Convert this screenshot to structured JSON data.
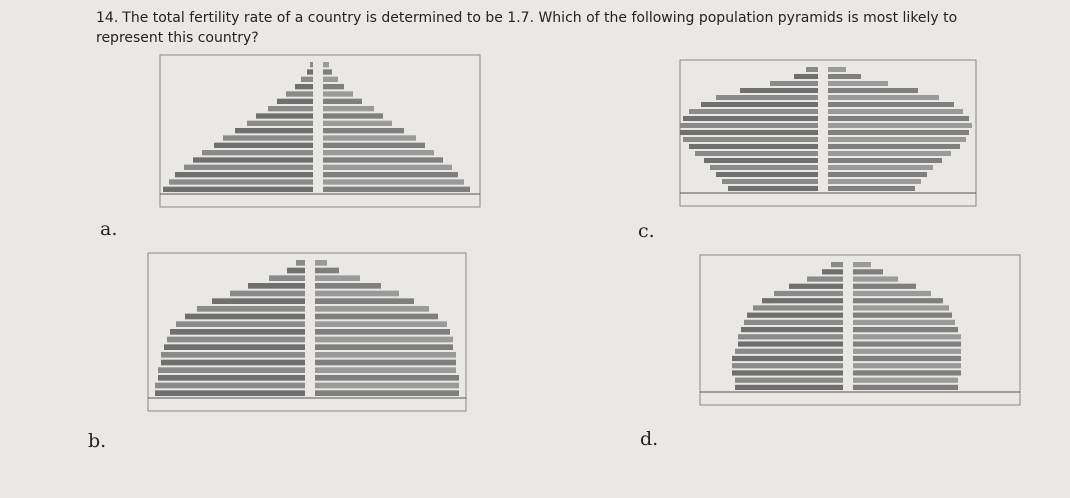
{
  "question": {
    "number": "14.",
    "text": "The total fertility rate of a country is determined to be 1.7. Which of the following population pyramids is most likely to represent this country?"
  },
  "options": [
    {
      "label": "a.",
      "pyramid": {
        "type": "population-pyramid",
        "male": [
          5.0,
          4.8,
          4.6,
          4.3,
          4.0,
          3.7,
          3.3,
          3.0,
          2.6,
          2.2,
          1.9,
          1.5,
          1.2,
          0.9,
          0.6,
          0.4,
          0.2,
          0.1
        ],
        "female": [
          4.9,
          4.7,
          4.5,
          4.3,
          4.0,
          3.7,
          3.4,
          3.1,
          2.7,
          2.3,
          2.0,
          1.7,
          1.3,
          1.0,
          0.7,
          0.5,
          0.3,
          0.2
        ]
      }
    },
    {
      "label": "b.",
      "pyramid": {
        "type": "population-pyramid",
        "male": [
          5.0,
          5.0,
          4.9,
          4.9,
          4.8,
          4.8,
          4.7,
          4.6,
          4.5,
          4.3,
          4.0,
          3.6,
          3.1,
          2.5,
          1.9,
          1.2,
          0.6,
          0.3
        ],
        "female": [
          4.8,
          4.8,
          4.8,
          4.7,
          4.7,
          4.7,
          4.6,
          4.6,
          4.5,
          4.4,
          4.1,
          3.8,
          3.3,
          2.8,
          2.2,
          1.5,
          0.8,
          0.4
        ]
      }
    },
    {
      "label": "c.",
      "pyramid": {
        "type": "population-pyramid",
        "male": [
          3.0,
          3.2,
          3.4,
          3.6,
          3.8,
          4.1,
          4.3,
          4.5,
          4.6,
          4.6,
          4.5,
          4.3,
          3.9,
          3.4,
          2.6,
          1.6,
          0.8,
          0.4
        ],
        "female": [
          2.9,
          3.1,
          3.3,
          3.5,
          3.8,
          4.1,
          4.4,
          4.6,
          4.7,
          4.8,
          4.7,
          4.5,
          4.2,
          3.7,
          3.0,
          2.0,
          1.1,
          0.6
        ]
      }
    },
    {
      "label": "d.",
      "pyramid": {
        "type": "population-pyramid",
        "male": [
          3.6,
          3.6,
          3.7,
          3.7,
          3.7,
          3.6,
          3.5,
          3.5,
          3.4,
          3.3,
          3.2,
          3.0,
          2.7,
          2.3,
          1.8,
          1.2,
          0.7,
          0.4
        ],
        "female": [
          3.5,
          3.5,
          3.6,
          3.6,
          3.6,
          3.6,
          3.6,
          3.6,
          3.5,
          3.4,
          3.3,
          3.2,
          3.0,
          2.6,
          2.1,
          1.5,
          1.0,
          0.6
        ]
      }
    }
  ]
}
